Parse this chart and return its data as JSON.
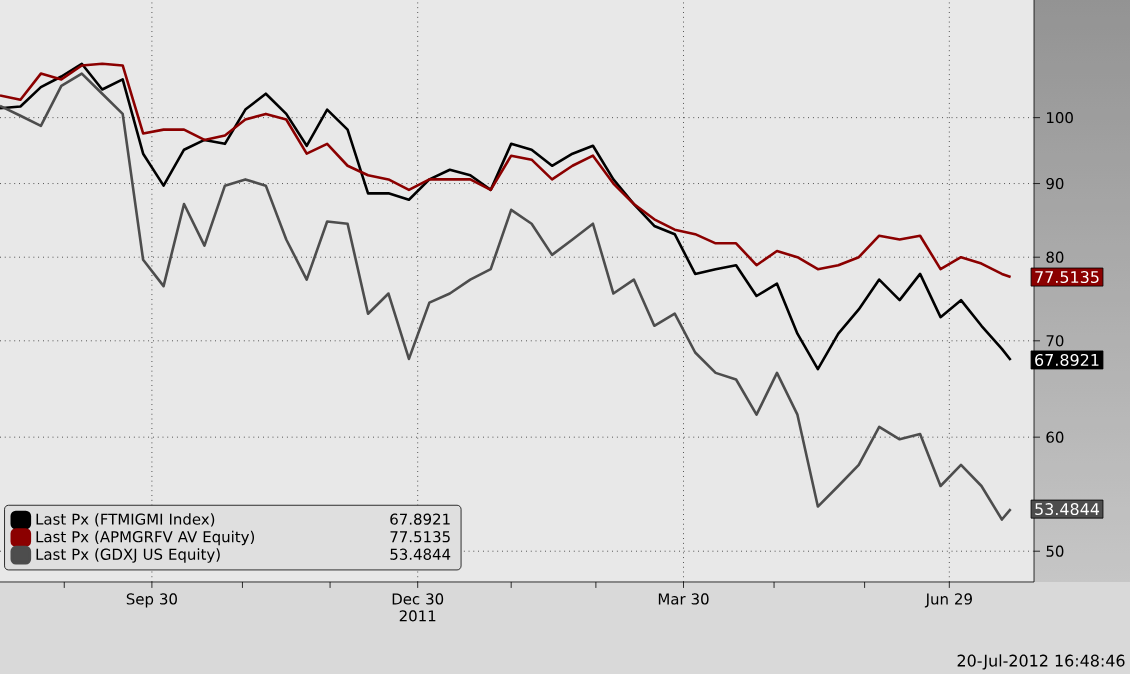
{
  "chart_data": {
    "type": "line",
    "x": [
      "2011-08-09",
      "2011-08-16",
      "2011-08-23",
      "2011-08-30",
      "2011-09-06",
      "2011-09-13",
      "2011-09-20",
      "2011-09-27",
      "2011-10-04",
      "2011-10-11",
      "2011-10-18",
      "2011-10-25",
      "2011-11-01",
      "2011-11-08",
      "2011-11-15",
      "2011-11-22",
      "2011-11-29",
      "2011-12-06",
      "2011-12-13",
      "2011-12-20",
      "2011-12-27",
      "2012-01-03",
      "2012-01-10",
      "2012-01-17",
      "2012-01-24",
      "2012-01-31",
      "2012-02-07",
      "2012-02-14",
      "2012-02-21",
      "2012-02-28",
      "2012-03-06",
      "2012-03-13",
      "2012-03-20",
      "2012-03-27",
      "2012-04-03",
      "2012-04-10",
      "2012-04-17",
      "2012-04-24",
      "2012-05-01",
      "2012-05-08",
      "2012-05-15",
      "2012-05-22",
      "2012-05-29",
      "2012-06-05",
      "2012-06-12",
      "2012-06-19",
      "2012-06-26",
      "2012-07-03",
      "2012-07-10",
      "2012-07-17",
      "2012-07-20"
    ],
    "series": [
      {
        "name": "Last Px (FTMIGMI Index)",
        "color": "#000000",
        "values": [
          101.5,
          101.8,
          105,
          106.8,
          109,
          104.6,
          106.3,
          94.4,
          89.7,
          95,
          96.5,
          95.9,
          101.3,
          103.9,
          100.6,
          95.6,
          101.3,
          98.1,
          88.6,
          88.6,
          87.7,
          90.6,
          92,
          91.2,
          89.1,
          95.9,
          95,
          92.6,
          94.4,
          95.6,
          90.6,
          87.1,
          84.1,
          83,
          77.9,
          78.5,
          79,
          75.2,
          76.7,
          70.8,
          66.9,
          70.8,
          73.6,
          77.2,
          74.7,
          77.9,
          72.7,
          74.7,
          71.7,
          69.1,
          67.8921
        ],
        "value_labels": [
          null,
          null,
          null,
          null,
          null,
          null,
          null,
          null,
          null,
          null,
          null,
          null,
          null,
          null,
          null,
          null,
          null,
          null,
          null,
          null,
          null,
          null,
          null,
          null,
          null,
          null,
          null,
          null,
          null,
          null,
          null,
          null,
          null,
          null,
          null,
          null,
          null,
          null,
          null,
          null,
          null,
          null,
          null,
          null,
          null,
          null,
          null,
          null,
          null,
          null,
          "67.8921"
        ]
      },
      {
        "name": "Last Px (APMGRFV AV Equity)",
        "color": "#8b0000",
        "values": [
          103.6,
          102.9,
          107.3,
          106.3,
          108.7,
          109,
          108.7,
          97.5,
          98.1,
          98.1,
          96.5,
          97.2,
          99.7,
          100.6,
          99.7,
          94.4,
          95.9,
          92.6,
          91.2,
          90.6,
          89.1,
          90.6,
          90.6,
          90.6,
          89.1,
          94.1,
          93.5,
          90.6,
          92.6,
          94.1,
          90,
          87.1,
          85,
          83.6,
          83,
          81.8,
          81.8,
          79,
          80.8,
          80,
          78.5,
          79,
          80,
          82.8,
          82.3,
          82.8,
          78.5,
          80,
          79.2,
          77.9,
          77.5135
        ],
        "value_labels": [
          null,
          null,
          null,
          null,
          null,
          null,
          null,
          null,
          null,
          null,
          null,
          null,
          null,
          null,
          null,
          null,
          null,
          null,
          null,
          null,
          null,
          null,
          null,
          null,
          null,
          null,
          null,
          null,
          null,
          null,
          null,
          null,
          null,
          null,
          null,
          null,
          null,
          null,
          null,
          null,
          null,
          null,
          null,
          null,
          null,
          null,
          null,
          null,
          null,
          null,
          "77.5135"
        ]
      },
      {
        "name": "Last Px (GDXJ US Equity)",
        "color": "#4d4d4d",
        "values": [
          101.9,
          100.3,
          98.7,
          105.2,
          107.3,
          103.9,
          100.6,
          79.7,
          76.4,
          87.1,
          81.5,
          89.7,
          90.6,
          89.7,
          82.3,
          77.2,
          84.7,
          84.4,
          73.1,
          75.5,
          68,
          74.4,
          75.5,
          77.2,
          78.5,
          86.3,
          84.4,
          80.3,
          82.3,
          84.4,
          75.5,
          77.2,
          71.7,
          73.1,
          68.7,
          66.5,
          65.8,
          62.2,
          66.5,
          62.2,
          53.7,
          55.5,
          57.4,
          61,
          59.8,
          60.3,
          55.5,
          57.4,
          55.5,
          52.6,
          53.4844
        ],
        "value_labels": [
          null,
          null,
          null,
          null,
          null,
          null,
          null,
          null,
          null,
          null,
          null,
          null,
          null,
          null,
          null,
          null,
          null,
          null,
          null,
          null,
          null,
          null,
          null,
          null,
          null,
          null,
          null,
          null,
          null,
          null,
          null,
          null,
          null,
          null,
          null,
          null,
          null,
          null,
          null,
          null,
          null,
          null,
          null,
          null,
          null,
          null,
          null,
          null,
          null,
          null,
          "53.4844"
        ]
      }
    ],
    "xlim": [
      "2011-08-09",
      "2012-07-28"
    ],
    "xticks": [
      {
        "value": "2011-08-31",
        "label": null
      },
      {
        "value": "2011-09-30",
        "label": "Sep 30"
      },
      {
        "value": "2011-10-31",
        "label": null
      },
      {
        "value": "2011-11-30",
        "label": null
      },
      {
        "value": "2011-12-30",
        "label": "Dec 30 2011"
      },
      {
        "value": "2012-01-31",
        "label": null
      },
      {
        "value": "2012-02-29",
        "label": null
      },
      {
        "value": "2012-03-30",
        "label": "Mar 30"
      },
      {
        "value": "2012-04-30",
        "label": null
      },
      {
        "value": "2012-05-31",
        "label": null
      },
      {
        "value": "2012-06-29",
        "label": "Jun 29"
      }
    ],
    "ylim": [
      47.6,
      120.7
    ],
    "yticks": [
      50,
      60,
      70,
      80,
      90,
      100
    ],
    "log": true,
    "grid": true,
    "legend": "bottom left",
    "annotations": [
      "20-Jul-2012 16:48:46"
    ]
  }
}
